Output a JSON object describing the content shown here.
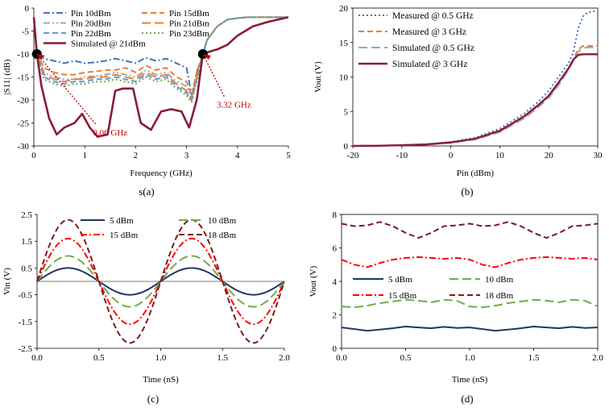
{
  "colors": {
    "blue": "#4472c4",
    "orange": "#ed7d31",
    "gray": "#a5a5a5",
    "steel": "#5b9bd5",
    "green": "#70ad47",
    "maroon": "#8b1a3c",
    "navy": "#1f3864",
    "lime": "#70ad47",
    "red": "#ff0000",
    "darkred": "#7b1c1c",
    "annot": "#c00000"
  },
  "chart_data": [
    {
      "id": "a",
      "type": "line",
      "caption": "s(a)",
      "xlabel": "Frequency (GHz)",
      "ylabel": "|S11| (dB)",
      "xlim": [
        0,
        5
      ],
      "ylim": [
        -30,
        0
      ],
      "xticks": [
        0,
        1,
        2,
        3,
        4,
        5
      ],
      "yticks": [
        -30,
        -25,
        -20,
        -15,
        -10,
        -5,
        0
      ],
      "legend": "top",
      "x": [
        0.0,
        0.06,
        0.2,
        0.4,
        0.6,
        0.8,
        1.0,
        1.2,
        1.4,
        1.6,
        1.8,
        2.0,
        2.2,
        2.4,
        2.6,
        2.8,
        3.0,
        3.1,
        3.2,
        3.32,
        3.4,
        3.6,
        3.8,
        4.0,
        4.2,
        4.4,
        4.6,
        4.8,
        5.0
      ],
      "series": [
        {
          "name": "Pin 10dBm",
          "color": "#4472c4",
          "dash": "dashdot",
          "values": [
            -2,
            -10,
            -11,
            -11.5,
            -12,
            -11.5,
            -12,
            -11.8,
            -11.5,
            -11,
            -11.5,
            -12,
            -10.8,
            -11.5,
            -11,
            -12,
            -13,
            -19,
            -14,
            -10,
            -7,
            -4,
            -2.5,
            -2.2,
            -2,
            -2,
            -2,
            -2,
            -2
          ]
        },
        {
          "name": "Pin 15dBm",
          "color": "#ed7d31",
          "dash": "dash",
          "values": [
            -2,
            -10,
            -13,
            -14,
            -14.5,
            -14.5,
            -14,
            -13.8,
            -13.5,
            -13.5,
            -13,
            -14,
            -12.5,
            -13.5,
            -13,
            -15,
            -16,
            -19,
            -14,
            -10,
            -7,
            -4,
            -2.5,
            -2.2,
            -2,
            -2,
            -2,
            -2,
            -2
          ]
        },
        {
          "name": "Pin 20dBm",
          "color": "#a5a5a5",
          "dash": "dashdotdot",
          "values": [
            -2,
            -10,
            -14,
            -15,
            -15.5,
            -15.5,
            -15,
            -14.8,
            -14.5,
            -14,
            -14.5,
            -15,
            -13.5,
            -14.5,
            -14,
            -16,
            -17,
            -19.5,
            -15,
            -10,
            -7,
            -4,
            -2.5,
            -2.2,
            -2,
            -2,
            -2,
            -2,
            -2
          ]
        },
        {
          "name": "Pin 21dBm",
          "color": "#ed7d31",
          "dash": "longdash",
          "values": [
            -2,
            -10,
            -14.5,
            -15.5,
            -16,
            -15.5,
            -15.5,
            -15,
            -15,
            -14.5,
            -15,
            -15.5,
            -14,
            -15,
            -14.5,
            -16.5,
            -18,
            -20,
            -15,
            -10,
            -7,
            -4,
            -2.5,
            -2.2,
            -2,
            -2,
            -2,
            -2,
            -2
          ]
        },
        {
          "name": "Pin 22dBm",
          "color": "#5b9bd5",
          "dash": "dash",
          "values": [
            -2,
            -10,
            -15,
            -16,
            -16.5,
            -16,
            -16,
            -15.5,
            -15.5,
            -15,
            -15.5,
            -16,
            -14.5,
            -15.5,
            -15,
            -17,
            -18.5,
            -20,
            -15.5,
            -10,
            -7,
            -4,
            -2.5,
            -2.2,
            -2,
            -2,
            -2,
            -2,
            -2
          ]
        },
        {
          "name": "Pin 23dBm",
          "color": "#70ad47",
          "dash": "dot",
          "values": [
            -2,
            -10,
            -15.5,
            -16.5,
            -17,
            -16.5,
            -16.5,
            -16,
            -16,
            -15.5,
            -16,
            -16.5,
            -15,
            -16,
            -15.5,
            -17.5,
            -19,
            -20.5,
            -16,
            -10,
            -7,
            -4,
            -2.5,
            -2.2,
            -2,
            -2,
            -2,
            -2,
            -2
          ]
        },
        {
          "name": "Simulated @ 21dBm",
          "color": "#8b1a3c",
          "dash": "solid",
          "width": 2.6,
          "x": [
            0.0,
            0.06,
            0.15,
            0.3,
            0.45,
            0.6,
            0.8,
            0.95,
            1.1,
            1.25,
            1.45,
            1.6,
            1.75,
            1.95,
            2.1,
            2.3,
            2.5,
            2.7,
            2.9,
            3.05,
            3.1,
            3.2,
            3.32,
            3.45,
            3.6,
            3.8,
            4.0,
            4.3,
            4.6,
            5.0
          ],
          "values": [
            -2,
            -10,
            -17,
            -24,
            -27.5,
            -26,
            -25,
            -23,
            -26,
            -28,
            -27.5,
            -18,
            -17.5,
            -17.5,
            -25,
            -26.5,
            -22.5,
            -22,
            -22.5,
            -26,
            -24,
            -20,
            -10,
            -9.5,
            -9,
            -8,
            -6,
            -4,
            -3,
            -2
          ]
        }
      ],
      "markers": [
        {
          "x": 0.06,
          "y": -10
        },
        {
          "x": 3.32,
          "y": -10
        }
      ],
      "annotations": [
        {
          "text": "0.06 GHz",
          "x": 1.5,
          "y": -27
        },
        {
          "text": "3.32 GHz",
          "x": 3.93,
          "y": -21
        }
      ]
    },
    {
      "id": "b",
      "type": "line",
      "caption": "(b)",
      "xlabel": "Pin (dBm)",
      "ylabel": "Vout (V)",
      "xlim": [
        -20,
        30
      ],
      "ylim": [
        0,
        20
      ],
      "xticks": [
        -20,
        -10,
        0,
        10,
        20,
        30
      ],
      "yticks": [
        0,
        5,
        10,
        15,
        20
      ],
      "legend": "top-left",
      "x": [
        -20,
        -15,
        -10,
        -5,
        0,
        5,
        10,
        15,
        18,
        20,
        22,
        24,
        25,
        26,
        27,
        28,
        30
      ],
      "series": [
        {
          "name": "Measured @ 0.5 GHz",
          "color": "#4472c4",
          "dash": "dot",
          "values": [
            0,
            0.02,
            0.1,
            0.25,
            0.6,
            1.2,
            2.5,
            4.7,
            6.5,
            8,
            10,
            12,
            13.5,
            17,
            18.8,
            19.4,
            19.6
          ]
        },
        {
          "name": "Measured @ 3 GHz",
          "color": "#ed7d31",
          "dash": "dash",
          "values": [
            0,
            0.02,
            0.1,
            0.22,
            0.5,
            1.0,
            2.1,
            4.2,
            5.9,
            7.2,
            9.0,
            11.2,
            12.5,
            14.0,
            14.5,
            14.5,
            14.5
          ]
        },
        {
          "name": "Simulated @ 0.5 GHz",
          "color": "#a5a5a5",
          "dash": "longdash",
          "values": [
            0,
            0.02,
            0.1,
            0.2,
            0.45,
            0.95,
            2.0,
            4.0,
            5.7,
            7.0,
            8.8,
            11.0,
            12.3,
            13.7,
            14.2,
            14.3,
            14.3
          ]
        },
        {
          "name": "Simulated @ 3 GHz",
          "color": "#8b1a3c",
          "dash": "solid",
          "width": 2.4,
          "values": [
            0,
            0.02,
            0.1,
            0.22,
            0.5,
            1.05,
            2.2,
            4.3,
            6.0,
            7.3,
            9.2,
            11.2,
            12.5,
            13.2,
            13.3,
            13.3,
            13.3
          ]
        }
      ]
    },
    {
      "id": "c",
      "type": "line",
      "caption": "(c)",
      "xlabel": "Time (nS)",
      "ylabel": "Vin (V)",
      "xlim": [
        0,
        2
      ],
      "ylim": [
        -2.5,
        2.5
      ],
      "xticks": [
        "0.0",
        "0.5",
        "1.0",
        "1.5",
        "2.0"
      ],
      "yticks": [
        "-2.5",
        "-1.5",
        "-0.5",
        "0.5",
        "1.5",
        "2.5"
      ],
      "legend": "top",
      "waveform": "sine",
      "period_ns": 1.0,
      "series": [
        {
          "name": "5 dBm",
          "color": "#1f3864",
          "dash": "solid",
          "amplitude": 0.5
        },
        {
          "name": "10 dBm",
          "color": "#70ad47",
          "dash": "longdash",
          "amplitude": 0.95
        },
        {
          "name": "15 dBm",
          "color": "#ff0000",
          "dash": "dashdot",
          "amplitude": 1.6
        },
        {
          "name": "18 dBm",
          "color": "#7b1c1c",
          "dash": "dash",
          "amplitude": 2.3
        }
      ]
    },
    {
      "id": "d",
      "type": "line",
      "caption": "(d)",
      "xlabel": "Time (nS)",
      "ylabel": "Vout (V)",
      "xlim": [
        0,
        2
      ],
      "ylim": [
        0,
        8
      ],
      "xticks": [
        "0.0",
        "0.5",
        "1.0",
        "1.5",
        "2.0"
      ],
      "yticks": [
        0,
        2,
        4,
        6,
        8
      ],
      "legend": "center",
      "x": [
        0,
        0.1,
        0.2,
        0.3,
        0.4,
        0.5,
        0.6,
        0.7,
        0.8,
        0.9,
        1.0,
        1.1,
        1.2,
        1.3,
        1.4,
        1.5,
        1.6,
        1.7,
        1.8,
        1.9,
        2.0
      ],
      "series": [
        {
          "name": "5 dBm",
          "color": "#1f3864",
          "dash": "solid",
          "values": [
            1.25,
            1.15,
            1.05,
            1.12,
            1.2,
            1.3,
            1.25,
            1.2,
            1.28,
            1.22,
            1.25,
            1.15,
            1.05,
            1.12,
            1.2,
            1.3,
            1.25,
            1.2,
            1.28,
            1.22,
            1.25
          ]
        },
        {
          "name": "10 dBm",
          "color": "#70ad47",
          "dash": "longdash",
          "values": [
            2.5,
            2.45,
            2.55,
            2.7,
            2.8,
            2.9,
            2.85,
            2.75,
            2.9,
            2.85,
            2.5,
            2.45,
            2.55,
            2.7,
            2.8,
            2.9,
            2.85,
            2.75,
            2.9,
            2.85,
            2.5
          ]
        },
        {
          "name": "15 dBm",
          "color": "#ff0000",
          "dash": "dashdot",
          "values": [
            5.3,
            5.0,
            4.85,
            5.1,
            5.3,
            5.4,
            5.45,
            5.4,
            5.35,
            5.4,
            5.3,
            5.0,
            4.85,
            5.1,
            5.3,
            5.4,
            5.45,
            5.4,
            5.35,
            5.4,
            5.3
          ]
        },
        {
          "name": "18 dBm",
          "color": "#7b1c1c",
          "dash": "dash",
          "values": [
            7.45,
            7.3,
            7.35,
            7.55,
            7.3,
            6.9,
            6.6,
            6.9,
            7.3,
            7.35,
            7.45,
            7.3,
            7.35,
            7.55,
            7.3,
            6.9,
            6.6,
            6.9,
            7.3,
            7.35,
            7.45
          ]
        }
      ]
    }
  ]
}
